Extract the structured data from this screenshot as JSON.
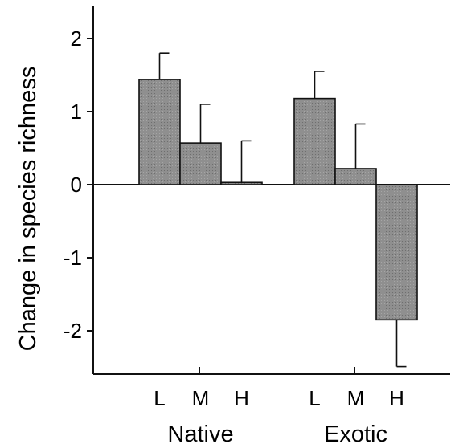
{
  "chart_data": {
    "type": "bar",
    "title": "",
    "xlabel": "",
    "ylabel": "Change in species richness",
    "ylim": [
      -2.6,
      2.4
    ],
    "yticks": [
      2,
      1,
      0,
      -1,
      -2
    ],
    "ytick_labels": [
      "2",
      "1",
      "0",
      "-1",
      "-2"
    ],
    "grid": false,
    "groups": [
      {
        "name": "Native",
        "categories": [
          "L",
          "M",
          "H"
        ],
        "values": [
          1.44,
          0.57,
          0.03
        ],
        "errors": [
          0.36,
          0.53,
          0.57
        ]
      },
      {
        "name": "Exotic",
        "categories": [
          "L",
          "M",
          "H"
        ],
        "values": [
          1.18,
          0.22,
          -1.85
        ],
        "errors": [
          0.37,
          0.61,
          0.64
        ]
      }
    ],
    "bar_color": "#8c8c8c"
  }
}
